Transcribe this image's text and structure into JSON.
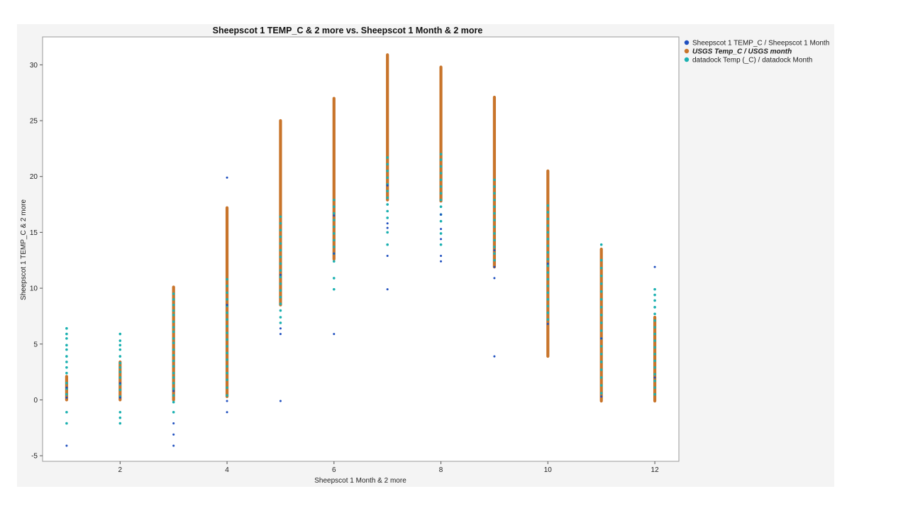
{
  "chart_data": {
    "type": "scatter",
    "title": "Sheepscot 1 TEMP_C & 2 more vs. Sheepscot 1 Month & 2 more",
    "xlabel": "Sheepscot 1 Month & 2 more",
    "ylabel": "Sheepscot 1 TEMP_C & 2 more",
    "xlim": [
      0.55,
      12.45
    ],
    "ylim": [
      -5.5,
      32.5
    ],
    "x_ticks": [
      2,
      4,
      6,
      8,
      10,
      12
    ],
    "y_ticks": [
      -5,
      0,
      5,
      10,
      15,
      20,
      25,
      30
    ],
    "grid": false,
    "legend_position": "right",
    "series": [
      {
        "name": "Sheepscot 1 TEMP_C / Sheepscot 1 Month",
        "color": "#1f4fbf",
        "points": [
          [
            1,
            -4.1
          ],
          [
            1,
            0.2
          ],
          [
            1,
            1.1
          ],
          [
            2,
            0.2
          ],
          [
            2,
            1.5
          ],
          [
            3,
            -4.1
          ],
          [
            3,
            -3.1
          ],
          [
            3,
            -2.1
          ],
          [
            3,
            0.8
          ],
          [
            4,
            -1.1
          ],
          [
            4,
            -0.1
          ],
          [
            4,
            19.9
          ],
          [
            4,
            8.5
          ],
          [
            5,
            -0.1
          ],
          [
            5,
            5.9
          ],
          [
            5,
            6.4
          ],
          [
            5,
            11.2
          ],
          [
            6,
            5.9
          ],
          [
            6,
            13.1
          ],
          [
            6,
            16.5
          ],
          [
            7,
            9.9
          ],
          [
            7,
            12.9
          ],
          [
            7,
            15.4
          ],
          [
            7,
            15.8
          ],
          [
            7,
            19.2
          ],
          [
            8,
            12.4
          ],
          [
            8,
            12.9
          ],
          [
            8,
            14.4
          ],
          [
            8,
            15.3
          ],
          [
            8,
            16.6
          ],
          [
            9,
            3.9
          ],
          [
            9,
            10.9
          ],
          [
            9,
            11.9
          ],
          [
            9,
            13.4
          ],
          [
            10,
            6.8
          ],
          [
            10,
            12.2
          ],
          [
            11,
            0.3
          ],
          [
            11,
            5.5
          ],
          [
            12,
            11.9
          ],
          [
            12,
            2.0
          ]
        ]
      },
      {
        "name": "USGS Temp_C / USGS month",
        "color": "#c8742a",
        "ranges": [
          {
            "x": 1,
            "min": 0.0,
            "max": 2.1
          },
          {
            "x": 2,
            "min": 0.0,
            "max": 3.4
          },
          {
            "x": 3,
            "min": 0.0,
            "max": 10.1
          },
          {
            "x": 4,
            "min": 0.3,
            "max": 17.2
          },
          {
            "x": 5,
            "min": 8.5,
            "max": 25.0
          },
          {
            "x": 6,
            "min": 12.6,
            "max": 27.0
          },
          {
            "x": 7,
            "min": 17.9,
            "max": 30.9
          },
          {
            "x": 8,
            "min": 17.8,
            "max": 29.8
          },
          {
            "x": 9,
            "min": 11.9,
            "max": 27.1
          },
          {
            "x": 10,
            "min": 3.9,
            "max": 20.5
          },
          {
            "x": 11,
            "min": -0.1,
            "max": 13.5
          },
          {
            "x": 12,
            "min": -0.1,
            "max": 7.4
          }
        ]
      },
      {
        "name": "datadock Temp (_C) / datadock Month",
        "color": "#1ab0b0",
        "points": [
          [
            1,
            -2.1
          ],
          [
            1,
            -1.1
          ],
          [
            1,
            0.5
          ],
          [
            1,
            1.0
          ],
          [
            1,
            1.5
          ],
          [
            1,
            2.4
          ],
          [
            1,
            2.9
          ],
          [
            1,
            3.4
          ],
          [
            1,
            3.9
          ],
          [
            1,
            4.5
          ],
          [
            1,
            4.9
          ],
          [
            1,
            5.5
          ],
          [
            1,
            5.9
          ],
          [
            1,
            6.4
          ],
          [
            2,
            -2.1
          ],
          [
            2,
            -1.6
          ],
          [
            2,
            -1.1
          ],
          [
            2,
            0.3
          ],
          [
            2,
            0.9
          ],
          [
            2,
            1.4
          ],
          [
            2,
            2.0
          ],
          [
            2,
            2.5
          ],
          [
            2,
            2.9
          ],
          [
            2,
            3.3
          ],
          [
            2,
            3.9
          ],
          [
            2,
            4.5
          ],
          [
            2,
            4.9
          ],
          [
            2,
            5.3
          ],
          [
            2,
            5.9
          ],
          [
            3,
            -1.1
          ],
          [
            3,
            -0.2
          ],
          [
            3,
            0.4
          ],
          [
            3,
            1.0
          ],
          [
            3,
            1.5
          ],
          [
            3,
            2.0
          ],
          [
            3,
            2.4
          ],
          [
            3,
            3.0
          ],
          [
            3,
            3.5
          ],
          [
            3,
            4.0
          ],
          [
            3,
            4.5
          ],
          [
            3,
            5.1
          ],
          [
            3,
            5.5
          ],
          [
            3,
            6.1
          ],
          [
            3,
            6.5
          ],
          [
            3,
            7.0
          ],
          [
            3,
            7.6
          ],
          [
            3,
            8.0
          ],
          [
            3,
            8.5
          ],
          [
            3,
            9.0
          ],
          [
            3,
            9.5
          ],
          [
            4,
            0.4
          ],
          [
            4,
            1.1
          ],
          [
            4,
            1.8
          ],
          [
            4,
            2.4
          ],
          [
            4,
            3.0
          ],
          [
            4,
            3.6
          ],
          [
            4,
            4.2
          ],
          [
            4,
            4.8
          ],
          [
            4,
            5.4
          ],
          [
            4,
            6.0
          ],
          [
            4,
            6.6
          ],
          [
            4,
            7.2
          ],
          [
            4,
            7.8
          ],
          [
            4,
            8.4
          ],
          [
            4,
            9.0
          ],
          [
            4,
            9.6
          ],
          [
            4,
            10.2
          ],
          [
            4,
            10.8
          ],
          [
            5,
            6.9
          ],
          [
            5,
            7.4
          ],
          [
            5,
            8.0
          ],
          [
            5,
            8.6
          ],
          [
            5,
            9.2
          ],
          [
            5,
            9.8
          ],
          [
            5,
            10.4
          ],
          [
            5,
            11.0
          ],
          [
            5,
            11.6
          ],
          [
            5,
            12.2
          ],
          [
            5,
            12.8
          ],
          [
            5,
            13.4
          ],
          [
            5,
            14.0
          ],
          [
            5,
            14.6
          ],
          [
            5,
            15.2
          ],
          [
            5,
            15.8
          ],
          [
            5,
            16.4
          ],
          [
            6,
            9.9
          ],
          [
            6,
            10.9
          ],
          [
            6,
            12.4
          ],
          [
            6,
            13.1
          ],
          [
            6,
            13.7
          ],
          [
            6,
            14.3
          ],
          [
            6,
            14.9
          ],
          [
            6,
            15.5
          ],
          [
            6,
            16.1
          ],
          [
            6,
            16.7
          ],
          [
            6,
            17.3
          ],
          [
            6,
            17.9
          ],
          [
            7,
            13.9
          ],
          [
            7,
            15.0
          ],
          [
            7,
            16.3
          ],
          [
            7,
            16.9
          ],
          [
            7,
            17.5
          ],
          [
            7,
            18.1
          ],
          [
            7,
            18.7
          ],
          [
            7,
            19.3
          ],
          [
            7,
            19.9
          ],
          [
            7,
            20.5
          ],
          [
            7,
            21.1
          ],
          [
            7,
            21.7
          ],
          [
            8,
            13.9
          ],
          [
            8,
            14.9
          ],
          [
            8,
            16.0
          ],
          [
            8,
            16.6
          ],
          [
            8,
            17.3
          ],
          [
            8,
            17.9
          ],
          [
            8,
            18.5
          ],
          [
            8,
            19.1
          ],
          [
            8,
            19.7
          ],
          [
            8,
            20.3
          ],
          [
            8,
            20.9
          ],
          [
            8,
            21.5
          ],
          [
            8,
            22.0
          ],
          [
            9,
            12.5
          ],
          [
            9,
            13.1
          ],
          [
            9,
            13.7
          ],
          [
            9,
            14.3
          ],
          [
            9,
            14.9
          ],
          [
            9,
            15.5
          ],
          [
            9,
            16.1
          ],
          [
            9,
            16.7
          ],
          [
            9,
            17.3
          ],
          [
            9,
            17.9
          ],
          [
            9,
            18.5
          ],
          [
            9,
            19.1
          ],
          [
            9,
            19.7
          ],
          [
            10,
            7.2
          ],
          [
            10,
            7.8
          ],
          [
            10,
            8.4
          ],
          [
            10,
            9.0
          ],
          [
            10,
            9.6
          ],
          [
            10,
            10.2
          ],
          [
            10,
            10.8
          ],
          [
            10,
            11.4
          ],
          [
            10,
            12.0
          ],
          [
            10,
            12.6
          ],
          [
            10,
            13.2
          ],
          [
            10,
            13.8
          ],
          [
            10,
            14.4
          ],
          [
            10,
            15.0
          ],
          [
            10,
            15.6
          ],
          [
            10,
            16.2
          ],
          [
            10,
            16.8
          ],
          [
            10,
            17.4
          ],
          [
            11,
            0.6
          ],
          [
            11,
            1.3
          ],
          [
            11,
            2.0
          ],
          [
            11,
            2.7
          ],
          [
            11,
            3.4
          ],
          [
            11,
            4.1
          ],
          [
            11,
            4.8
          ],
          [
            11,
            5.5
          ],
          [
            11,
            6.2
          ],
          [
            11,
            6.9
          ],
          [
            11,
            7.6
          ],
          [
            11,
            8.3
          ],
          [
            11,
            9.0
          ],
          [
            11,
            9.7
          ],
          [
            11,
            10.4
          ],
          [
            11,
            11.1
          ],
          [
            11,
            11.8
          ],
          [
            11,
            12.5
          ],
          [
            11,
            13.9
          ],
          [
            12,
            0.5
          ],
          [
            12,
            1.1
          ],
          [
            12,
            1.7
          ],
          [
            12,
            2.3
          ],
          [
            12,
            2.9
          ],
          [
            12,
            3.5
          ],
          [
            12,
            4.1
          ],
          [
            12,
            4.7
          ],
          [
            12,
            5.3
          ],
          [
            12,
            5.9
          ],
          [
            12,
            6.5
          ],
          [
            12,
            7.1
          ],
          [
            12,
            7.7
          ],
          [
            12,
            8.3
          ],
          [
            12,
            8.9
          ],
          [
            12,
            9.4
          ],
          [
            12,
            9.9
          ]
        ]
      }
    ]
  }
}
